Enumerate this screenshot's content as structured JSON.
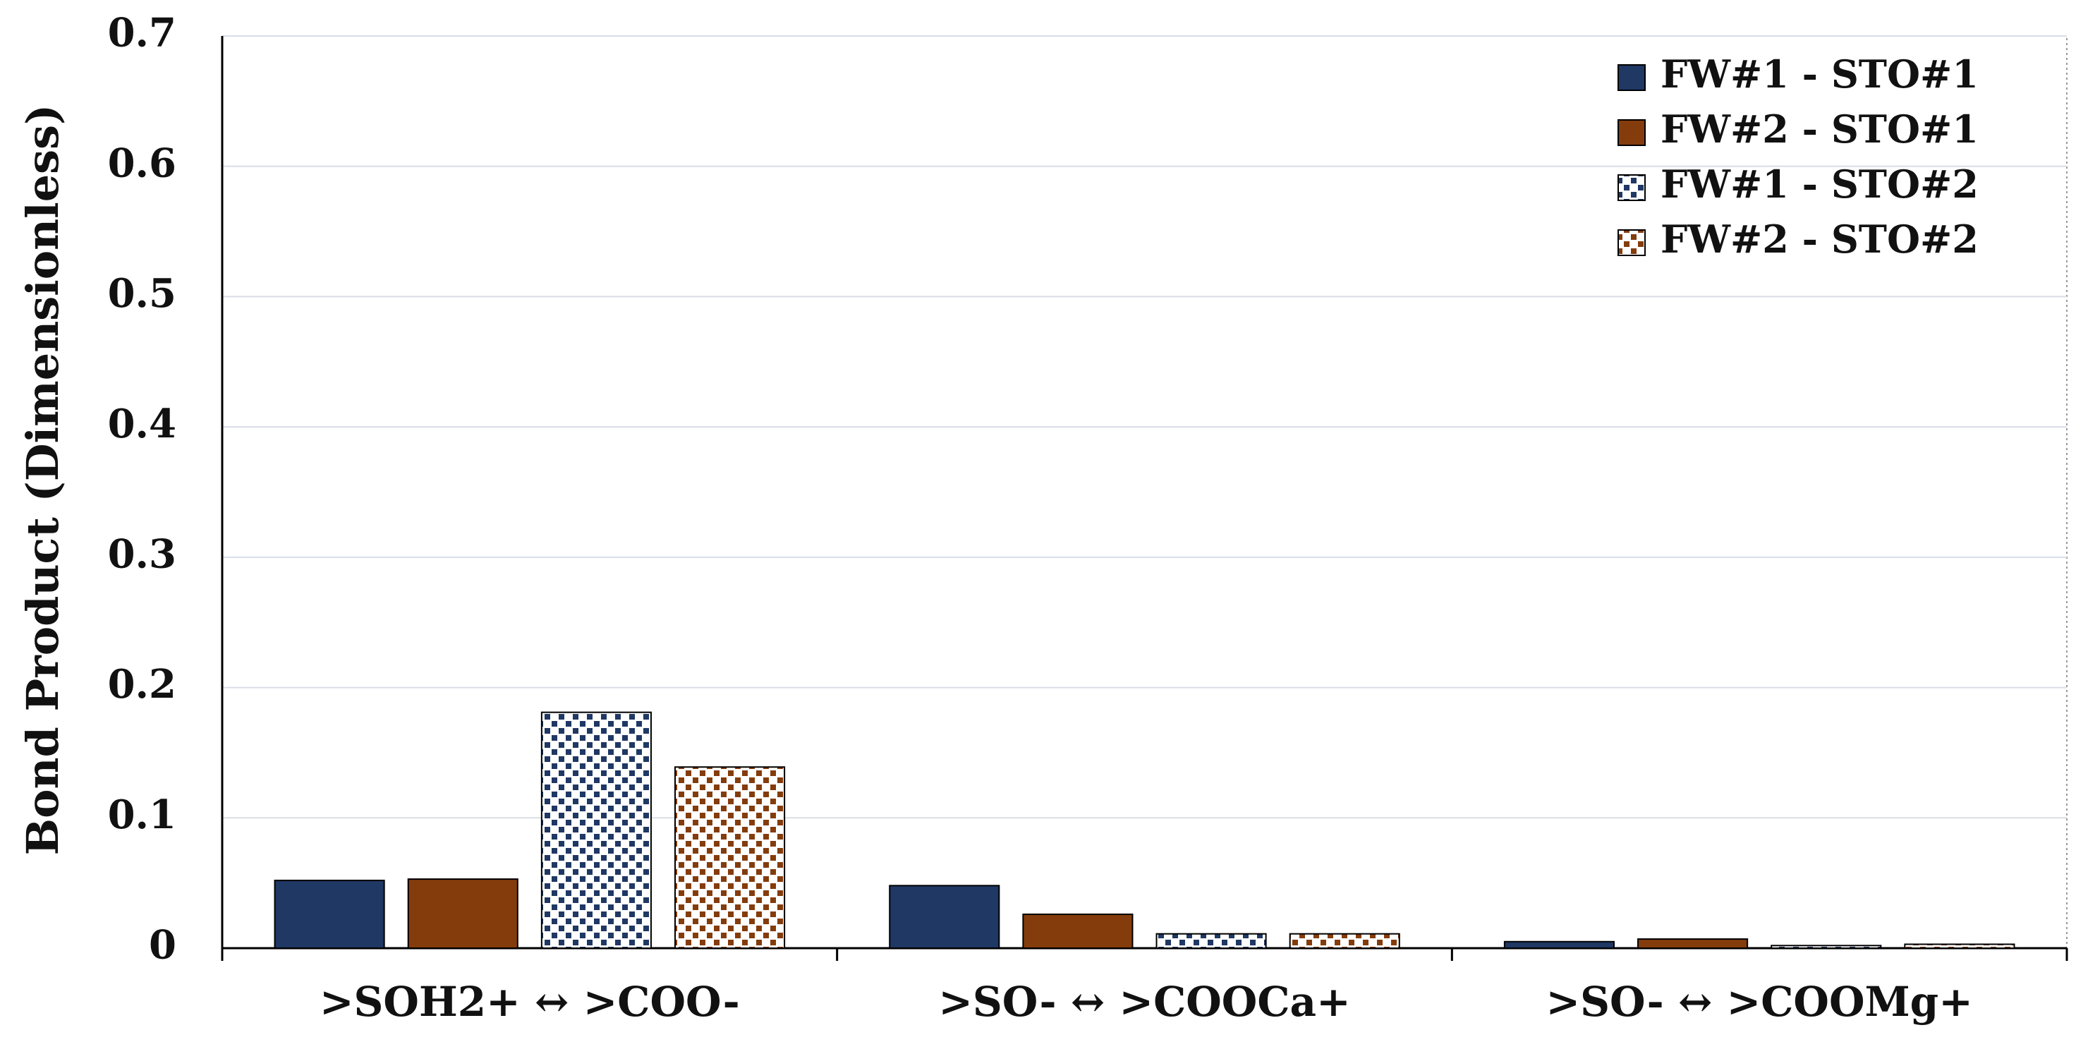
{
  "chart_data": {
    "type": "bar",
    "y_label": "Bond Product (Dimensionless)",
    "categories": [
      ">SOH2+ ↔ >COO-",
      ">SO- ↔ >COOCa+",
      ">SO- ↔ >COOMg+"
    ],
    "series": [
      {
        "name": "FW#1 - STO#1",
        "color": "#1f3864",
        "values": [
          0.052,
          0.048,
          0.005
        ]
      },
      {
        "name": "FW#2 - STO#1",
        "color": "#843c0c",
        "values": [
          0.053,
          0.026,
          0.007
        ]
      },
      {
        "name": "FW#1 - STO#2",
        "color": "#1f3864",
        "pattern": "squares",
        "values": [
          0.181,
          0.011,
          0.002
        ]
      },
      {
        "name": "FW#2 - STO#2",
        "color": "#843c0c",
        "pattern": "squares",
        "values": [
          0.139,
          0.011,
          0.003
        ]
      }
    ],
    "ylim": [
      0,
      0.7
    ],
    "yticks": [
      0,
      0.1,
      0.2,
      0.3,
      0.4,
      0.5,
      0.6,
      0.7
    ],
    "grid": true,
    "legend": "upper right"
  }
}
